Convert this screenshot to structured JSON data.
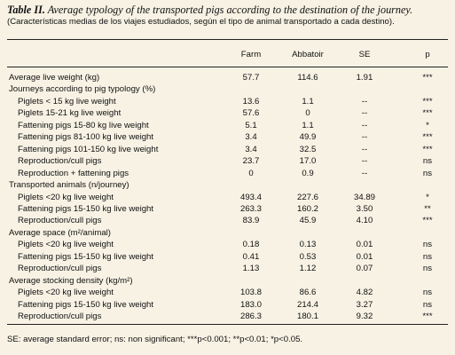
{
  "title": {
    "label": "Table II.",
    "text": "Average typology of the transported pigs according to the destination of the journey."
  },
  "subtitle": "(Características medias de los viajes estudiados, según el tipo de animal transportado a cada destino).",
  "table": {
    "header": [
      "Farm",
      "Abbatoir",
      "SE",
      "p"
    ],
    "top_rows": [
      [
        "Average live weight (kg)",
        "57.7",
        "114.6",
        "1.91",
        "***"
      ]
    ],
    "sections": [
      {
        "title": "Journeys according to pig typology (%)",
        "rows": [
          [
            "Piglets < 15 kg live weight",
            "13.6",
            "1.1",
            "--",
            "***"
          ],
          [
            "Piglets 15-21 kg live weight",
            "57.6",
            "0",
            "--",
            "***"
          ],
          [
            "Fattening pigs 15-80 kg live weight",
            "5.1",
            "1.1",
            "--",
            "*"
          ],
          [
            "Fattening pigs  81-100 kg live weight",
            "3.4",
            "49.9",
            "--",
            "***"
          ],
          [
            "Fattening pigs 101-150 kg live weight",
            "3.4",
            "32.5",
            "--",
            "***"
          ],
          [
            "Reproduction/cull pigs",
            "23.7",
            "17.0",
            "--",
            "ns"
          ],
          [
            "Reproduction + fattening pigs",
            "0",
            "0.9",
            "--",
            "ns"
          ]
        ]
      },
      {
        "title": "Transported animals (n/journey)",
        "rows": [
          [
            "Piglets <20 kg live weight",
            "493.4",
            "227.6",
            "34.89",
            "*"
          ],
          [
            "Fattening pigs 15-150 kg live weight",
            "263.3",
            "160.2",
            "3.50",
            "**"
          ],
          [
            "Reproduction/cull pigs",
            "83.9",
            "45.9",
            "4.10",
            "***"
          ]
        ]
      },
      {
        "title": "Average space (m²/animal)",
        "rows": [
          [
            "Piglets <20 kg live weight",
            "0.18",
            "0.13",
            "0.01",
            "ns"
          ],
          [
            "Fattening pigs 15-150 kg live weight",
            "0.41",
            "0.53",
            "0.01",
            "ns"
          ],
          [
            "Reproduction/cull pigs",
            "1.13",
            "1.12",
            "0.07",
            "ns"
          ]
        ]
      },
      {
        "title": "Average stocking density (kg/m²)",
        "rows": [
          [
            "Piglets <20 kg live weight",
            "103.8",
            "86.6",
            "4.82",
            "ns"
          ],
          [
            "Fattening pigs 15-150 kg live weight",
            "183.0",
            "214.4",
            "3.27",
            "ns"
          ],
          [
            "Reproduction/cull pigs",
            "286.3",
            "180.1",
            "9.32",
            "***"
          ]
        ]
      }
    ]
  },
  "footnote": "SE: average standard error; ns: non significant; ***p<0.001; **p<0.01; *p<0.05."
}
